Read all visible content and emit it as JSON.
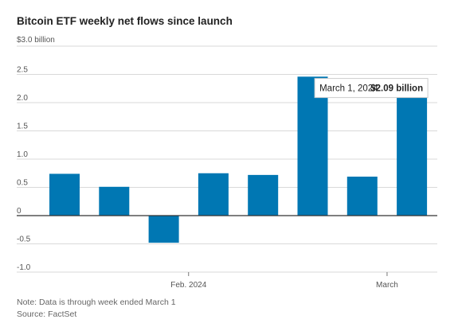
{
  "chart_data": {
    "type": "bar",
    "title": "Bitcoin ETF weekly net flows since launch",
    "unit_label": "$3.0 billion",
    "ylim": [
      -1.0,
      3.0
    ],
    "yticks": [
      3.0,
      2.5,
      2.0,
      1.5,
      1.0,
      0.5,
      0,
      -0.5,
      -1.0
    ],
    "ytick_labels": [
      "",
      "2.5",
      "2.0",
      "1.5",
      "1.0",
      "0.5",
      "0",
      "-0.5",
      "-1.0"
    ],
    "x_tick_labels": [
      {
        "after_bar": 3,
        "label": "Feb. 2024"
      },
      {
        "after_bar": 7,
        "label": "March"
      }
    ],
    "values": [
      0.74,
      0.51,
      -0.48,
      0.75,
      0.72,
      2.46,
      0.69,
      2.09
    ],
    "bar_color": "#0077b3",
    "annotation": {
      "bar_index": 7,
      "date": "March 1, 2024",
      "value_text": "$2.09 billion"
    },
    "grid": true
  },
  "notes": {
    "note": "Note: Data is through week ended March 1",
    "source": "Source: FactSet"
  }
}
